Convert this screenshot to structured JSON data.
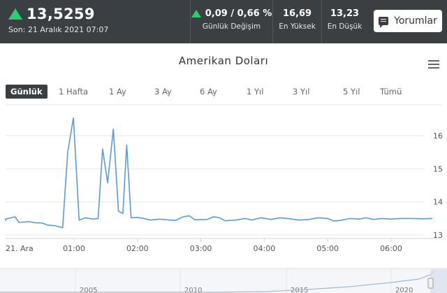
{
  "header": {
    "price": "13,5259",
    "updated": "Son: 21 Aralık 2021 07:07",
    "change_value": "0,09 / 0,66 %",
    "change_label": "Günlük Değişim",
    "high_value": "16,69",
    "high_label": "En Yüksek",
    "low_value": "13,23",
    "low_label": "En Düşük",
    "comments_label": "Yorumlar"
  },
  "colors": {
    "header_bg": "#3a3f44",
    "up": "#2ecc71",
    "line": "#5b9bd5"
  },
  "ranges": [
    "Günlük",
    "1 Hafta",
    "1 Ay",
    "3 Ay",
    "6 Ay",
    "1 Yıl",
    "3 Yıl",
    "5 Yıl",
    "Tümü"
  ],
  "active_range": "Günlük",
  "chart_data": {
    "type": "line",
    "title": "Amerikan Doları",
    "ylim": [
      13,
      16.6
    ],
    "yticks": [
      13,
      14,
      15,
      16
    ],
    "ytick_labels": [
      "13",
      "14",
      "15",
      "16"
    ],
    "xlim": [
      -1.15,
      5.65
    ],
    "xticks": [
      -1,
      0,
      1,
      2,
      3,
      4,
      5,
      6
    ],
    "xtick_labels": [
      "21. Ara",
      "01:00",
      "02:00",
      "03:00",
      "04:00",
      "05:00",
      "06:00"
    ],
    "xtick_positions": [
      0,
      1,
      2,
      3,
      4,
      5,
      6
    ],
    "grid": true,
    "series": [
      {
        "values": [
          [
            -1.15,
            13.43
          ],
          [
            -1.08,
            13.48
          ],
          [
            -0.93,
            13.55
          ],
          [
            -0.87,
            13.38
          ],
          [
            -0.7,
            13.4
          ],
          [
            -0.62,
            13.37
          ],
          [
            -0.5,
            13.36
          ],
          [
            -0.42,
            13.3
          ],
          [
            -0.3,
            13.28
          ],
          [
            -0.18,
            13.22
          ],
          [
            -0.1,
            15.5
          ],
          [
            -0.01,
            16.54
          ],
          [
            0.08,
            13.45
          ],
          [
            0.18,
            13.52
          ],
          [
            0.3,
            13.48
          ],
          [
            0.38,
            13.5
          ],
          [
            0.45,
            15.6
          ],
          [
            0.53,
            14.58
          ],
          [
            0.62,
            16.2
          ],
          [
            0.7,
            13.72
          ],
          [
            0.77,
            13.65
          ],
          [
            0.83,
            15.72
          ],
          [
            0.9,
            13.52
          ],
          [
            1.0,
            13.53
          ],
          [
            1.1,
            13.5
          ],
          [
            1.2,
            13.45
          ],
          [
            1.35,
            13.48
          ],
          [
            1.5,
            13.45
          ],
          [
            1.6,
            13.44
          ],
          [
            1.72,
            13.55
          ],
          [
            1.82,
            13.58
          ],
          [
            1.9,
            13.46
          ],
          [
            2.1,
            13.47
          ],
          [
            2.2,
            13.55
          ],
          [
            2.3,
            13.52
          ],
          [
            2.38,
            13.43
          ],
          [
            2.55,
            13.45
          ],
          [
            2.7,
            13.5
          ],
          [
            2.8,
            13.45
          ],
          [
            2.95,
            13.52
          ],
          [
            3.1,
            13.47
          ],
          [
            3.25,
            13.52
          ],
          [
            3.4,
            13.49
          ],
          [
            3.55,
            13.45
          ],
          [
            3.7,
            13.47
          ],
          [
            3.85,
            13.52
          ],
          [
            4.0,
            13.5
          ],
          [
            4.1,
            13.42
          ],
          [
            4.2,
            13.44
          ],
          [
            4.35,
            13.5
          ],
          [
            4.5,
            13.48
          ],
          [
            4.6,
            13.52
          ],
          [
            4.72,
            13.47
          ],
          [
            4.85,
            13.5
          ],
          [
            5.0,
            13.48
          ],
          [
            5.15,
            13.5
          ],
          [
            5.3,
            13.5
          ],
          [
            5.5,
            13.49
          ],
          [
            5.65,
            13.5
          ]
        ]
      }
    ]
  },
  "navigator": {
    "labels": [
      "2005",
      "2010",
      "2015",
      "2020"
    ]
  }
}
